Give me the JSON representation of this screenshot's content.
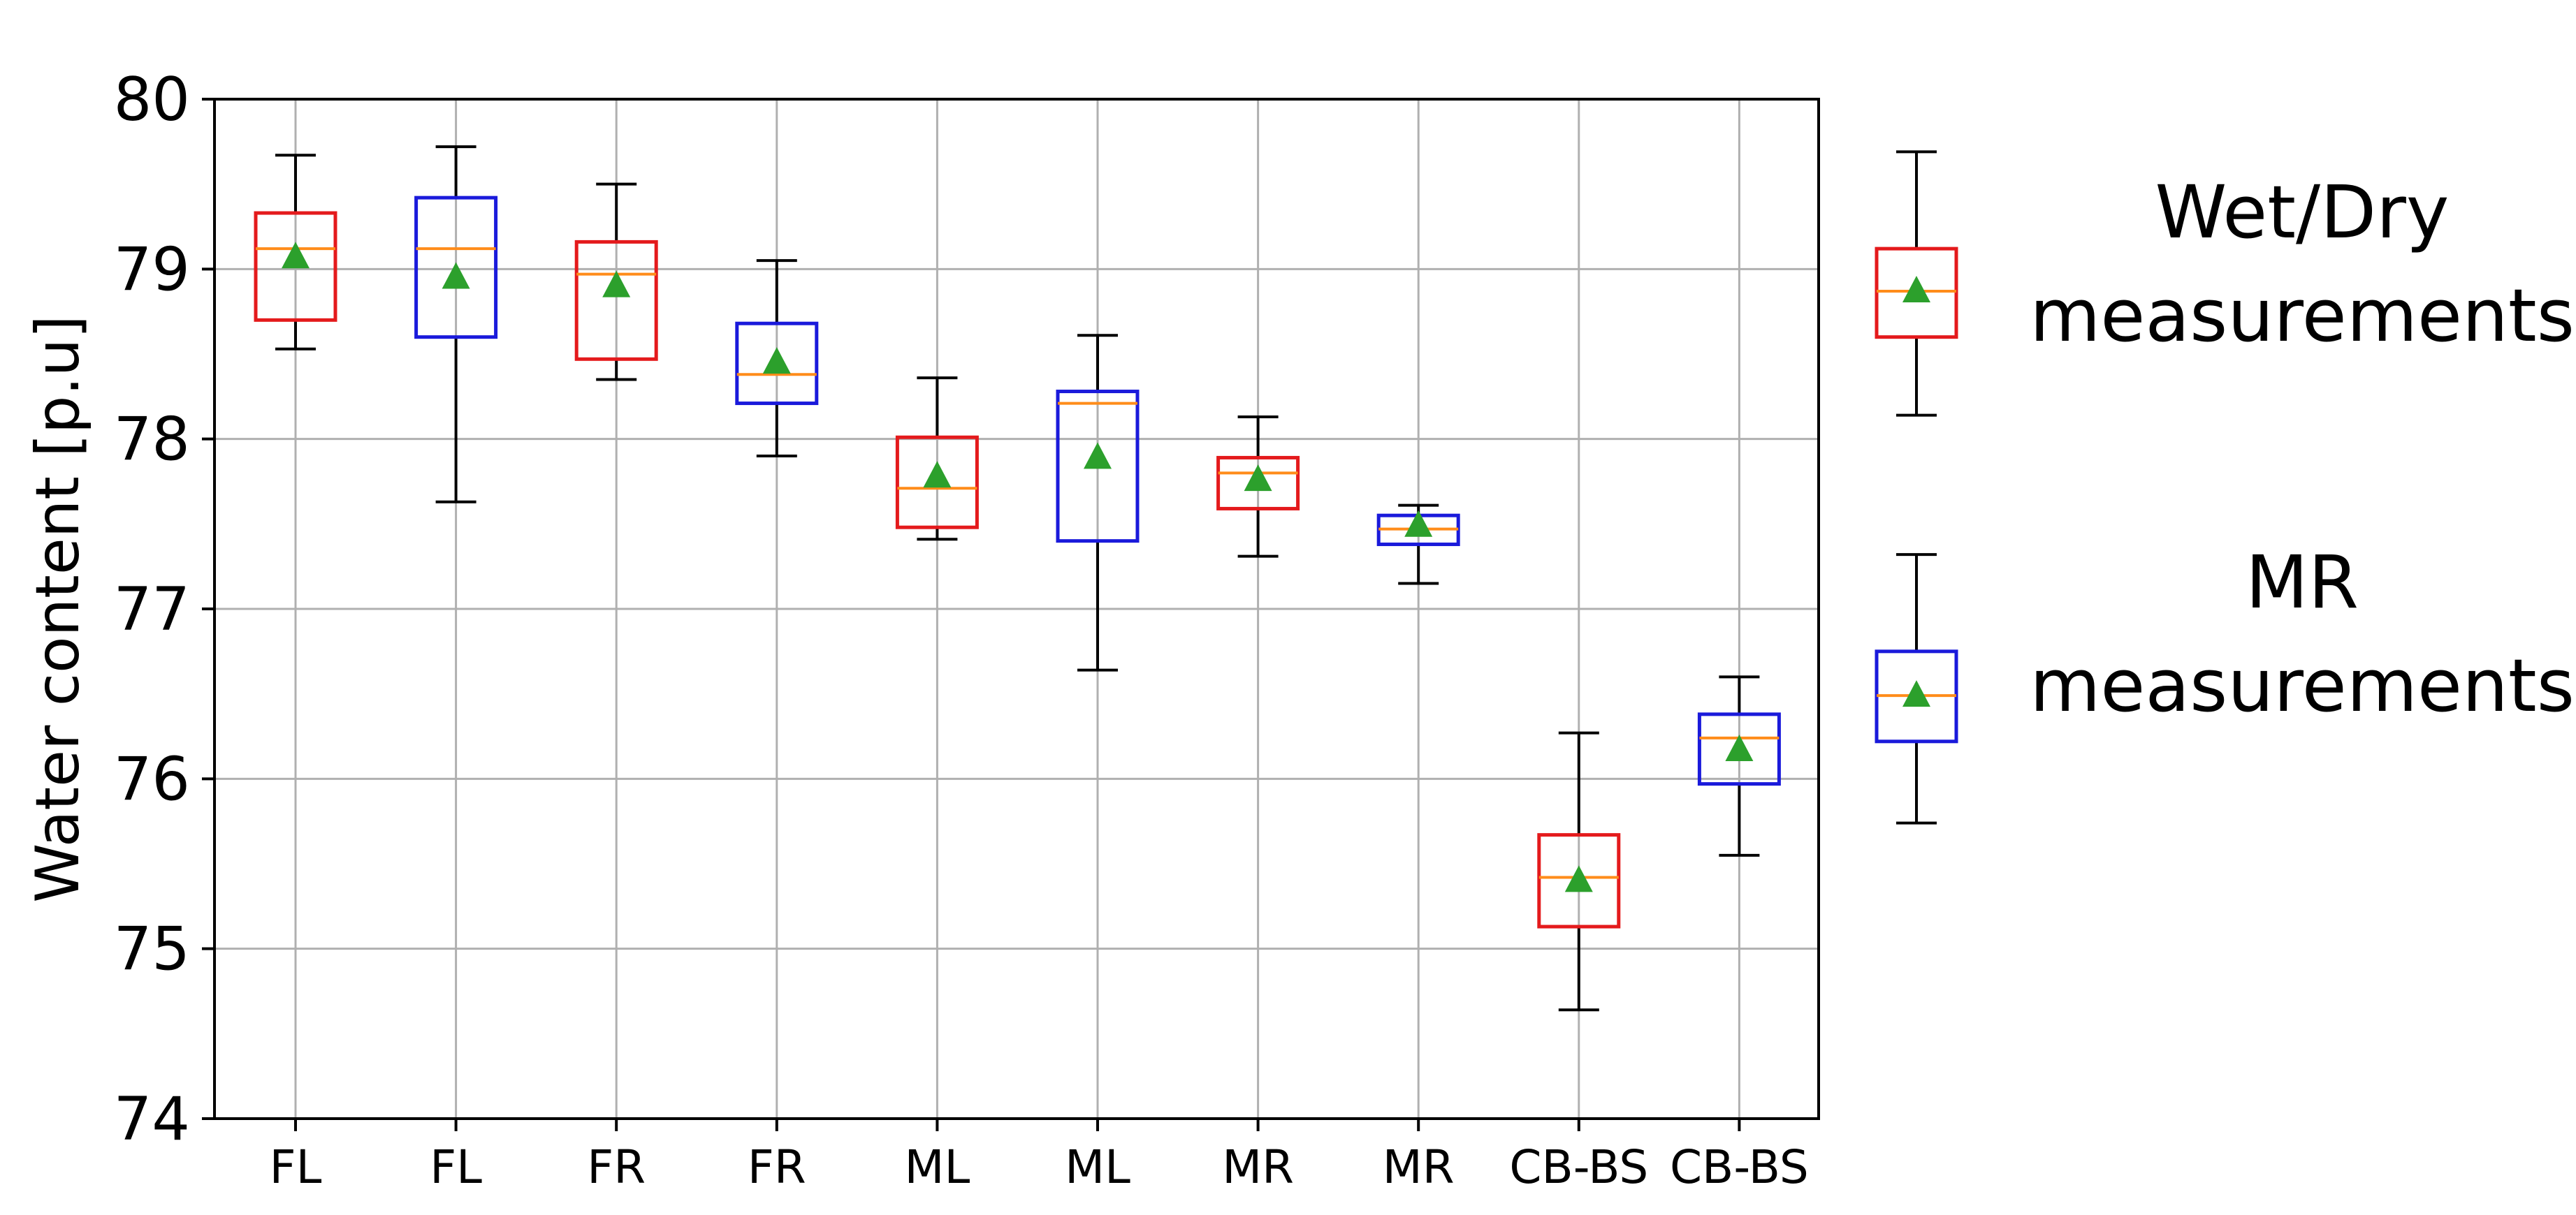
{
  "chart_data": {
    "type": "box",
    "title": "",
    "xlabel": "",
    "ylabel": "Water content [p.u]",
    "ylim": [
      74,
      80
    ],
    "yticks": [
      74,
      75,
      76,
      77,
      78,
      79,
      80
    ],
    "grid": true,
    "categories": [
      "FL",
      "FL",
      "FR",
      "FR",
      "ML",
      "ML",
      "MR",
      "MR",
      "CB-BS",
      "CB-BS"
    ],
    "boxes": [
      {
        "label": "FL",
        "group": "Wet/Dry measurements",
        "whisker_low": 78.53,
        "q1": 78.7,
        "median": 79.12,
        "q3": 79.33,
        "whisker_high": 79.67,
        "mean": 79.07
      },
      {
        "label": "FL",
        "group": "MR measurements",
        "whisker_low": 77.63,
        "q1": 78.6,
        "median": 79.12,
        "q3": 79.42,
        "whisker_high": 79.72,
        "mean": 78.95
      },
      {
        "label": "FR",
        "group": "Wet/Dry measurements",
        "whisker_low": 78.35,
        "q1": 78.47,
        "median": 78.97,
        "q3": 79.16,
        "whisker_high": 79.5,
        "mean": 78.9
      },
      {
        "label": "FR",
        "group": "MR measurements",
        "whisker_low": 77.9,
        "q1": 78.21,
        "median": 78.38,
        "q3": 78.68,
        "whisker_high": 79.05,
        "mean": 78.45
      },
      {
        "label": "ML",
        "group": "Wet/Dry measurements",
        "whisker_low": 77.41,
        "q1": 77.48,
        "median": 77.71,
        "q3": 78.01,
        "whisker_high": 78.36,
        "mean": 77.78
      },
      {
        "label": "ML",
        "group": "MR measurements",
        "whisker_low": 76.64,
        "q1": 77.4,
        "median": 78.21,
        "q3": 78.28,
        "whisker_high": 78.61,
        "mean": 77.89
      },
      {
        "label": "MR",
        "group": "Wet/Dry measurements",
        "whisker_low": 77.31,
        "q1": 77.59,
        "median": 77.8,
        "q3": 77.89,
        "whisker_high": 78.13,
        "mean": 77.76
      },
      {
        "label": "MR",
        "group": "MR measurements",
        "whisker_low": 77.15,
        "q1": 77.38,
        "median": 77.47,
        "q3": 77.55,
        "whisker_high": 77.61,
        "mean": 77.49
      },
      {
        "label": "CB-BS",
        "group": "Wet/Dry measurements",
        "whisker_low": 74.64,
        "q1": 75.13,
        "median": 75.42,
        "q3": 75.67,
        "whisker_high": 76.27,
        "mean": 75.4
      },
      {
        "label": "CB-BS",
        "group": "MR measurements",
        "whisker_low": 75.55,
        "q1": 75.97,
        "median": 76.24,
        "q3": 76.38,
        "whisker_high": 76.6,
        "mean": 76.17
      }
    ],
    "legend": {
      "placement": "right",
      "entries": [
        {
          "line1": "Wet/Dry",
          "line2": "measurements",
          "color": "#e41a1c"
        },
        {
          "line1": "MR",
          "line2": "measurements",
          "color": "#1a1adb"
        }
      ]
    },
    "colors": {
      "wetdry": "#e41a1c",
      "mr": "#1a1adb",
      "median": "#ff8c1a",
      "mean_marker": "#2ca02c",
      "whisker": "#000000",
      "grid": "#b0b0b0"
    }
  }
}
